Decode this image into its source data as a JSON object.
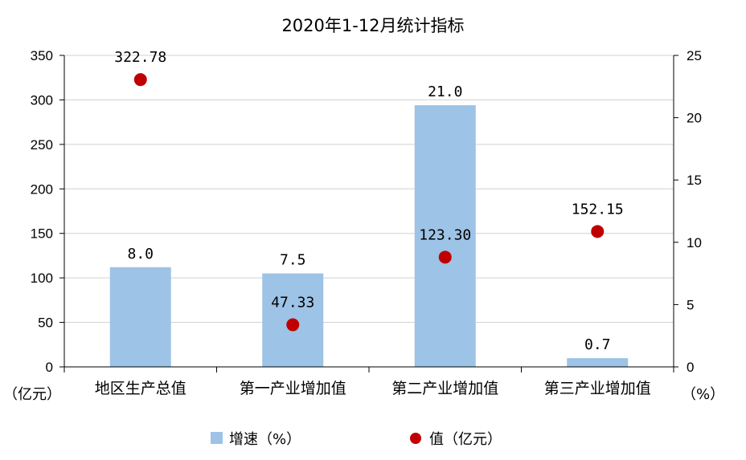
{
  "chart_data": {
    "type": "bar",
    "title": "2020年1-12月统计指标",
    "categories": [
      "地区生产总值",
      "第一产业增加值",
      "第二产业增加值",
      "第三产业增加值"
    ],
    "series": [
      {
        "name": "增速（%）",
        "type": "bar",
        "axis": "right",
        "values": [
          8.0,
          7.5,
          21.0,
          0.7
        ],
        "labels": [
          "8.0",
          "7.5",
          "21.0",
          "0.7"
        ],
        "color": "#9dc3e6"
      },
      {
        "name": "值（亿元）",
        "type": "scatter",
        "axis": "left",
        "values": [
          322.78,
          47.33,
          123.3,
          152.15
        ],
        "labels": [
          "322.78",
          "47.33",
          "123.30",
          "152.15"
        ],
        "color": "#c00000"
      }
    ],
    "y_left": {
      "label": "（亿元）",
      "range": [
        0,
        350
      ],
      "ticks": [
        "0",
        "50",
        "100",
        "150",
        "200",
        "250",
        "300",
        "350"
      ]
    },
    "y_right": {
      "label": "（%）",
      "range": [
        0,
        25
      ],
      "ticks": [
        "0",
        "5",
        "10",
        "15",
        "20",
        "25"
      ]
    },
    "grid": true,
    "legend_position": "bottom"
  }
}
